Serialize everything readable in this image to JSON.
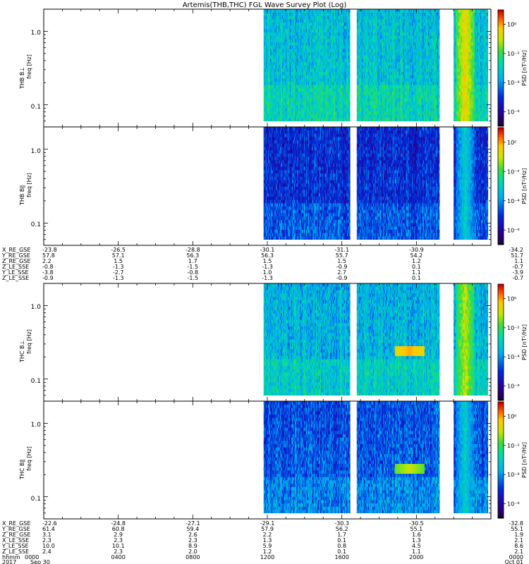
{
  "title": "Artemis(THB,THC) FGL Wave Survey Plot (Log)",
  "colorbar": {
    "label": "PSD [nT²/Hz]",
    "ticks": [
      "10⁰",
      "10⁻²",
      "10⁻⁴",
      "10⁻⁶"
    ],
    "tick_exponents": [
      0,
      -2,
      -4,
      -6
    ],
    "range_log": [
      -7,
      1
    ]
  },
  "yaxis": {
    "ticks": [
      "1.0",
      "0.1"
    ],
    "tick_values": [
      1.0,
      0.1
    ],
    "range": [
      0.05,
      2.0
    ],
    "scale": "log"
  },
  "panels": [
    {
      "id": "thb-bperp",
      "label": "THB B⊥",
      "unit": "freq [Hz]"
    },
    {
      "id": "thb-bpar",
      "label": "THB B∥",
      "unit": "freq [Hz]"
    },
    {
      "id": "thc-bperp",
      "label": "THC B⊥",
      "unit": "freq [Hz]"
    },
    {
      "id": "thc-bpar",
      "label": "THC B∥",
      "unit": "freq [Hz]"
    }
  ],
  "annotations": {
    "thb": {
      "labels": [
        "X_RE_GSE",
        "Y_RE_GSE",
        "Z_RE_GSE",
        "Z_LE_SSE",
        "Y_LE_SSE",
        "Z_LE_SSE"
      ],
      "rows": [
        [
          "-23.8",
          "-26.5",
          "-28.8",
          "-30.1",
          "-31.1",
          "-30.9",
          "-34.2"
        ],
        [
          "57.8",
          "57.1",
          "56.3",
          "56.3",
          "55.7",
          "54.2",
          "51.7"
        ],
        [
          "2.2",
          "1.5",
          "1.7",
          "1.5",
          "1.5",
          "1.2",
          "1.1"
        ],
        [
          "-0.8",
          "-1.3",
          "-1.5",
          "-1.3",
          "-0.9",
          "0.1",
          "-0.7"
        ],
        [
          "-3.8",
          "-2.7",
          "-0.8",
          "1.0",
          "2.7",
          "1.1",
          "-3.9"
        ],
        [
          "-0.9",
          "-1.3",
          "-1.5",
          "-1.3",
          "-0.9",
          "0.1",
          "-0.7"
        ]
      ]
    },
    "thc": {
      "labels": [
        "X_RE_GSE",
        "Y_RE_GSE",
        "Z_RE_GSE",
        "X_LE_SSE",
        "Y_LE_SSE",
        "Z_LE_SSE"
      ],
      "rows": [
        [
          "-22.6",
          "-24.8",
          "-27.1",
          "-29.1",
          "-30.3",
          "-30.5",
          "-32.8"
        ],
        [
          "61.4",
          "60.8",
          "59.4",
          "57.9",
          "56.2",
          "55.1",
          "55.1"
        ],
        [
          "3.1",
          "2.9",
          "2.6",
          "2.2",
          "1.7",
          "1.6",
          "1.9"
        ],
        [
          "2.3",
          "2.3",
          "2.3",
          "1.3",
          "0.1",
          "1.3",
          "2.1"
        ],
        [
          "10.0",
          "10.1",
          "8.9",
          "5.9",
          "0.8",
          "4.5",
          "8.6"
        ],
        [
          "2.4",
          "2.3",
          "2.0",
          "1.2",
          "0.1",
          "1.1",
          "2.1"
        ]
      ]
    },
    "time": {
      "labels": [
        "hhmm",
        "2017"
      ],
      "hhmm": [
        "0000",
        "0400",
        "0800",
        "1200",
        "1600",
        "2000",
        "0000"
      ],
      "dates": [
        "Sep 30",
        "Oct 01"
      ]
    }
  },
  "chart_data": {
    "type": "heatmap",
    "title": "Artemis(THB,THC) FGL Wave Survey Plot (Log)",
    "x_unit": "hours",
    "xlim": [
      0,
      24
    ],
    "ylim": [
      0.05,
      2.0
    ],
    "y_scale": "log",
    "data_intervals": [
      [
        11.8,
        16.4
      ],
      [
        16.8,
        21.2
      ],
      [
        22.0,
        23.8
      ]
    ],
    "series": [
      {
        "name": "THB B⊥",
        "mean_log_psd": -3.2,
        "features": [
          {
            "x": 22.6,
            "log_psd": -0.5
          }
        ]
      },
      {
        "name": "THB B∥",
        "mean_log_psd": -5.0,
        "features": [
          {
            "x": 22.6,
            "log_psd": -3.0
          }
        ]
      },
      {
        "name": "THC B⊥",
        "mean_log_psd": -3.4,
        "features": [
          {
            "x": 19.6,
            "log_psd": 0.0,
            "y": 0.25
          },
          {
            "x": 22.6,
            "log_psd": -1.0
          }
        ]
      },
      {
        "name": "THC B∥",
        "mean_log_psd": -4.5,
        "features": [
          {
            "x": 19.6,
            "log_psd": -1.0,
            "y": 0.25
          },
          {
            "x": 22.6,
            "log_psd": -3.0
          }
        ]
      }
    ]
  }
}
